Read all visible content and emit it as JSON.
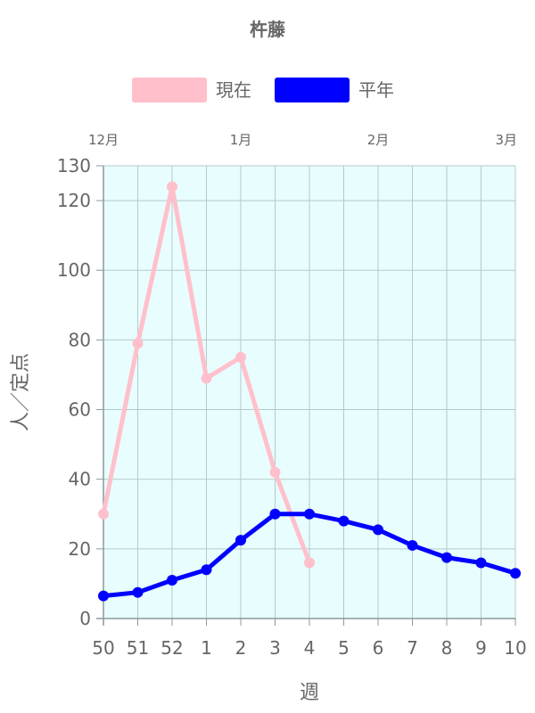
{
  "chart_data": {
    "type": "line",
    "title": "杵藤",
    "xlabel": "週",
    "ylabel": "人／定点",
    "categories": [
      "50",
      "51",
      "52",
      "1",
      "2",
      "3",
      "4",
      "5",
      "6",
      "7",
      "8",
      "9",
      "10"
    ],
    "month_labels": [
      {
        "label": "12月",
        "at": 0
      },
      {
        "label": "1月",
        "at": 4
      },
      {
        "label": "2月",
        "at": 8
      },
      {
        "label": "3月",
        "at": 12
      }
    ],
    "ylim": [
      0,
      130
    ],
    "yticks": [
      0,
      20,
      40,
      60,
      80,
      100,
      120,
      130
    ],
    "grid": true,
    "legend_position": "top",
    "plot_background": "#e8fdfd",
    "series": [
      {
        "name": "現在",
        "color": "#ffc0cb",
        "values": [
          30,
          79,
          124,
          69,
          75,
          42,
          16,
          null,
          null,
          null,
          null,
          null,
          null
        ]
      },
      {
        "name": "平年",
        "color": "#0000ff",
        "values": [
          6.5,
          7.5,
          11,
          14,
          22.5,
          30,
          30,
          28,
          25.5,
          21,
          17.5,
          16,
          13
        ]
      }
    ]
  }
}
